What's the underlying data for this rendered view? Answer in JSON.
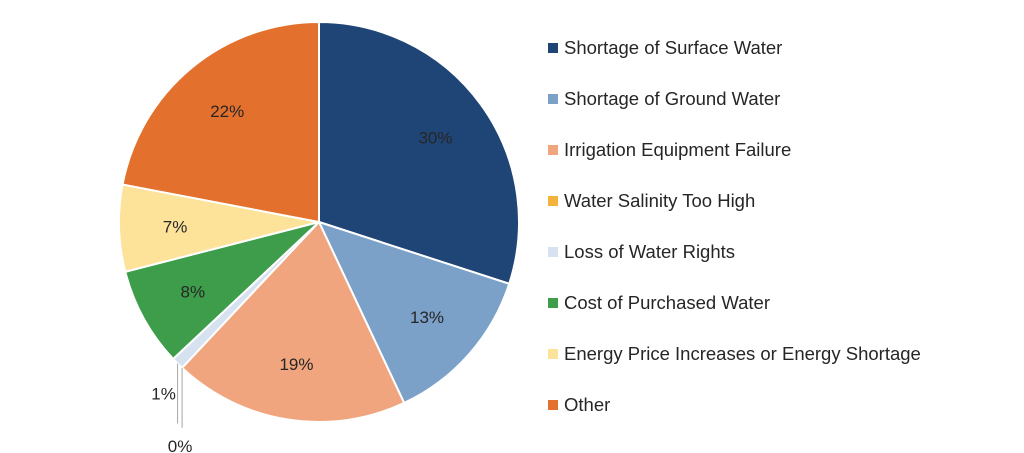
{
  "chart_data": {
    "type": "pie",
    "title": "",
    "categories": [
      "Shortage of Surface Water",
      "Shortage of Ground Water",
      "Irrigation Equipment Failure",
      "Water Salinity Too High",
      "Loss of Water Rights",
      "Cost of Purchased Water",
      "Energy Price Increases or Energy Shortage",
      "Other"
    ],
    "values": [
      30,
      13,
      19,
      0,
      1,
      8,
      7,
      22
    ],
    "value_labels": [
      "30%",
      "13%",
      "19%",
      "0%",
      "1%",
      "8%",
      "7%",
      "22%"
    ],
    "colors": [
      "#1f4576",
      "#7ba1c8",
      "#f0a57e",
      "#f3b33d",
      "#d6e2ef",
      "#3e9d4b",
      "#fde29a",
      "#e3702d"
    ],
    "legend_position": "right",
    "start_angle": "12 o'clock",
    "direction": "clockwise"
  }
}
